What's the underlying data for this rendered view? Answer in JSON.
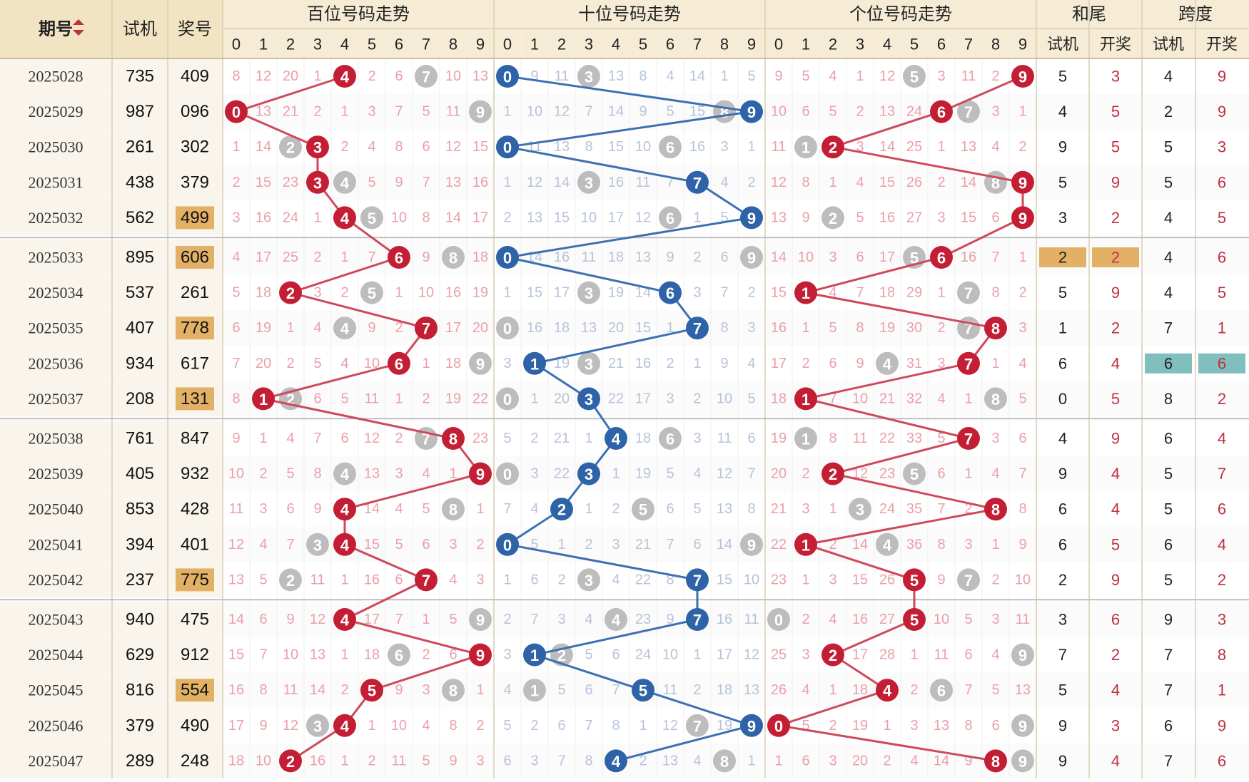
{
  "headers": {
    "period": "期号",
    "sort_icon": "sort-updown-icon",
    "trial": "试机",
    "award": "奖号",
    "hundreds": "百位号码走势",
    "tens": "十位号码走势",
    "units": "个位号码走势",
    "sum_tail": "和尾",
    "span": "跨度",
    "sub_trial": "试机",
    "sub_open": "开奖",
    "digits": [
      "0",
      "1",
      "2",
      "3",
      "4",
      "5",
      "6",
      "7",
      "8",
      "9"
    ]
  },
  "colors": {
    "header_bg": "#f6ecd6",
    "highlight_award": "#e2b166",
    "highlight_teal": "#7fbfbe",
    "red_ball": "#c41e35",
    "blue_ball": "#2f63a8",
    "gray_ball": "#bdbdbd",
    "red_line": "#cd4a5c",
    "blue_line": "#3d70b3",
    "miss_red": "#eaa0a8",
    "miss_blue": "#b7c3d9"
  },
  "chart_data": {
    "type": "table",
    "columns": [
      "期号",
      "试机",
      "奖号",
      "百位号码走势",
      "十位号码走势",
      "个位号码走势",
      "和尾 试机",
      "和尾 开奖",
      "跨度 试机",
      "跨度 开奖"
    ],
    "rows": [
      {
        "period": "2025028",
        "trial": "735",
        "award": "409",
        "award_hl": false,
        "h": [
          "8",
          "12",
          "20",
          "1",
          "4",
          "2",
          "6",
          "7",
          "10",
          "13"
        ],
        "t": [
          "0",
          "9",
          "11",
          "3",
          "13",
          "8",
          "4",
          "14",
          "1",
          "5"
        ],
        "u": [
          "9",
          "5",
          "4",
          "1",
          "12",
          "5",
          "3",
          "11",
          "2",
          "9"
        ],
        "sum_trial": "5",
        "sum_open": "3",
        "span_trial": "4",
        "span_open": "9",
        "hl_sum": false,
        "hl_span": false
      },
      {
        "period": "2025029",
        "trial": "987",
        "award": "096",
        "award_hl": false,
        "h": [
          "0",
          "13",
          "21",
          "2",
          "1",
          "3",
          "7",
          "5",
          "11",
          "9"
        ],
        "t": [
          "1",
          "10",
          "12",
          "7",
          "14",
          "9",
          "5",
          "15",
          "8",
          "9"
        ],
        "u": [
          "10",
          "6",
          "5",
          "2",
          "13",
          "24",
          "6",
          "7",
          "3",
          "1"
        ],
        "sum_trial": "4",
        "sum_open": "5",
        "span_trial": "2",
        "span_open": "9",
        "hl_sum": false,
        "hl_span": false
      },
      {
        "period": "2025030",
        "trial": "261",
        "award": "302",
        "award_hl": false,
        "h": [
          "1",
          "14",
          "2",
          "3",
          "2",
          "4",
          "8",
          "6",
          "12",
          "15"
        ],
        "t": [
          "0",
          "11",
          "13",
          "8",
          "15",
          "10",
          "6",
          "16",
          "3",
          "1"
        ],
        "u": [
          "11",
          "1",
          "2",
          "3",
          "14",
          "25",
          "1",
          "13",
          "4",
          "2"
        ],
        "sum_trial": "9",
        "sum_open": "5",
        "span_trial": "5",
        "span_open": "3",
        "hl_sum": false,
        "hl_span": false
      },
      {
        "period": "2025031",
        "trial": "438",
        "award": "379",
        "award_hl": false,
        "h": [
          "2",
          "15",
          "23",
          "3",
          "4",
          "5",
          "9",
          "7",
          "13",
          "16"
        ],
        "t": [
          "1",
          "12",
          "14",
          "3",
          "16",
          "11",
          "7",
          "7",
          "4",
          "2"
        ],
        "u": [
          "12",
          "8",
          "1",
          "4",
          "15",
          "26",
          "2",
          "14",
          "8",
          "9"
        ],
        "sum_trial": "5",
        "sum_open": "9",
        "span_trial": "5",
        "span_open": "6",
        "hl_sum": false,
        "hl_span": false
      },
      {
        "period": "2025032",
        "trial": "562",
        "award": "499",
        "award_hl": true,
        "h": [
          "3",
          "16",
          "24",
          "1",
          "4",
          "5",
          "10",
          "8",
          "14",
          "17"
        ],
        "t": [
          "2",
          "13",
          "15",
          "10",
          "17",
          "12",
          "6",
          "1",
          "5",
          "9"
        ],
        "u": [
          "13",
          "9",
          "2",
          "5",
          "16",
          "27",
          "3",
          "15",
          "6",
          "9"
        ],
        "sum_trial": "3",
        "sum_open": "2",
        "span_trial": "4",
        "span_open": "5",
        "hl_sum": false,
        "hl_span": false
      },
      {
        "period": "2025033",
        "trial": "895",
        "award": "606",
        "award_hl": true,
        "h": [
          "4",
          "17",
          "25",
          "2",
          "1",
          "7",
          "6",
          "9",
          "8",
          "18"
        ],
        "t": [
          "0",
          "14",
          "16",
          "11",
          "18",
          "13",
          "9",
          "2",
          "6",
          "9"
        ],
        "u": [
          "14",
          "10",
          "3",
          "6",
          "17",
          "5",
          "6",
          "16",
          "7",
          "1"
        ],
        "sum_trial": "2",
        "sum_open": "2",
        "span_trial": "4",
        "span_open": "6",
        "hl_sum": true,
        "hl_span": false
      },
      {
        "period": "2025034",
        "trial": "537",
        "award": "261",
        "award_hl": false,
        "h": [
          "5",
          "18",
          "2",
          "3",
          "2",
          "5",
          "1",
          "10",
          "16",
          "19"
        ],
        "t": [
          "1",
          "15",
          "17",
          "3",
          "19",
          "14",
          "6",
          "3",
          "7",
          "2"
        ],
        "u": [
          "15",
          "1",
          "4",
          "7",
          "18",
          "29",
          "1",
          "7",
          "8",
          "2"
        ],
        "sum_trial": "5",
        "sum_open": "9",
        "span_trial": "4",
        "span_open": "5",
        "hl_sum": false,
        "hl_span": false
      },
      {
        "period": "2025035",
        "trial": "407",
        "award": "778",
        "award_hl": true,
        "h": [
          "6",
          "19",
          "1",
          "4",
          "4",
          "9",
          "2",
          "7",
          "17",
          "20"
        ],
        "t": [
          "0",
          "16",
          "18",
          "13",
          "20",
          "15",
          "1",
          "7",
          "8",
          "3"
        ],
        "u": [
          "16",
          "1",
          "5",
          "8",
          "19",
          "30",
          "2",
          "7",
          "8",
          "3"
        ],
        "sum_trial": "1",
        "sum_open": "2",
        "span_trial": "7",
        "span_open": "1",
        "hl_sum": false,
        "hl_span": false
      },
      {
        "period": "2025036",
        "trial": "934",
        "award": "617",
        "award_hl": false,
        "h": [
          "7",
          "20",
          "2",
          "5",
          "4",
          "10",
          "6",
          "1",
          "18",
          "9"
        ],
        "t": [
          "3",
          "1",
          "19",
          "3",
          "21",
          "16",
          "2",
          "1",
          "9",
          "4"
        ],
        "u": [
          "17",
          "2",
          "6",
          "9",
          "4",
          "31",
          "3",
          "7",
          "1",
          "4"
        ],
        "sum_trial": "6",
        "sum_open": "4",
        "span_trial": "6",
        "span_open": "6",
        "hl_sum": false,
        "hl_span": true
      },
      {
        "period": "2025037",
        "trial": "208",
        "award": "131",
        "award_hl": true,
        "h": [
          "8",
          "1",
          "2",
          "6",
          "5",
          "11",
          "1",
          "2",
          "19",
          "22"
        ],
        "t": [
          "0",
          "1",
          "20",
          "3",
          "22",
          "17",
          "3",
          "2",
          "10",
          "5"
        ],
        "u": [
          "18",
          "1",
          "7",
          "10",
          "21",
          "32",
          "4",
          "1",
          "8",
          "5"
        ],
        "sum_trial": "0",
        "sum_open": "5",
        "span_trial": "8",
        "span_open": "2",
        "hl_sum": false,
        "hl_span": false
      },
      {
        "period": "2025038",
        "trial": "761",
        "award": "847",
        "award_hl": false,
        "h": [
          "9",
          "1",
          "4",
          "7",
          "6",
          "12",
          "2",
          "7",
          "8",
          "23"
        ],
        "t": [
          "5",
          "2",
          "21",
          "1",
          "4",
          "18",
          "6",
          "3",
          "11",
          "6"
        ],
        "u": [
          "19",
          "1",
          "8",
          "11",
          "22",
          "33",
          "5",
          "7",
          "3",
          "6"
        ],
        "sum_trial": "4",
        "sum_open": "9",
        "span_trial": "6",
        "span_open": "4",
        "hl_sum": false,
        "hl_span": false
      },
      {
        "period": "2025039",
        "trial": "405",
        "award": "932",
        "award_hl": false,
        "h": [
          "10",
          "2",
          "5",
          "8",
          "4",
          "13",
          "3",
          "4",
          "1",
          "9"
        ],
        "t": [
          "0",
          "3",
          "22",
          "3",
          "1",
          "19",
          "5",
          "4",
          "12",
          "7"
        ],
        "u": [
          "20",
          "2",
          "2",
          "12",
          "23",
          "5",
          "6",
          "1",
          "4",
          "7"
        ],
        "sum_trial": "9",
        "sum_open": "4",
        "span_trial": "5",
        "span_open": "7",
        "hl_sum": false,
        "hl_span": false
      },
      {
        "period": "2025040",
        "trial": "853",
        "award": "428",
        "award_hl": false,
        "h": [
          "11",
          "3",
          "6",
          "9",
          "4",
          "14",
          "4",
          "5",
          "8",
          "1"
        ],
        "t": [
          "7",
          "4",
          "2",
          "1",
          "2",
          "5",
          "6",
          "5",
          "13",
          "8"
        ],
        "u": [
          "21",
          "3",
          "1",
          "3",
          "24",
          "35",
          "7",
          "2",
          "8",
          "8"
        ],
        "sum_trial": "6",
        "sum_open": "4",
        "span_trial": "5",
        "span_open": "6",
        "hl_sum": false,
        "hl_span": false
      },
      {
        "period": "2025041",
        "trial": "394",
        "award": "401",
        "award_hl": false,
        "h": [
          "12",
          "4",
          "7",
          "3",
          "4",
          "15",
          "5",
          "6",
          "3",
          "2"
        ],
        "t": [
          "0",
          "5",
          "1",
          "2",
          "3",
          "21",
          "7",
          "6",
          "14",
          "9"
        ],
        "u": [
          "22",
          "1",
          "2",
          "14",
          "4",
          "36",
          "8",
          "3",
          "1",
          "9"
        ],
        "sum_trial": "6",
        "sum_open": "5",
        "span_trial": "6",
        "span_open": "4",
        "hl_sum": false,
        "hl_span": false
      },
      {
        "period": "2025042",
        "trial": "237",
        "award": "775",
        "award_hl": true,
        "h": [
          "13",
          "5",
          "2",
          "11",
          "1",
          "16",
          "6",
          "7",
          "4",
          "3"
        ],
        "t": [
          "1",
          "6",
          "2",
          "3",
          "4",
          "22",
          "8",
          "7",
          "15",
          "10"
        ],
        "u": [
          "23",
          "1",
          "3",
          "15",
          "26",
          "5",
          "9",
          "7",
          "2",
          "10"
        ],
        "sum_trial": "2",
        "sum_open": "9",
        "span_trial": "5",
        "span_open": "2",
        "hl_sum": false,
        "hl_span": false
      },
      {
        "period": "2025043",
        "trial": "940",
        "award": "475",
        "award_hl": false,
        "h": [
          "14",
          "6",
          "9",
          "12",
          "4",
          "17",
          "7",
          "1",
          "5",
          "9"
        ],
        "t": [
          "2",
          "7",
          "3",
          "4",
          "4",
          "23",
          "9",
          "7",
          "16",
          "11"
        ],
        "u": [
          "0",
          "2",
          "4",
          "16",
          "27",
          "5",
          "10",
          "5",
          "3",
          "11"
        ],
        "sum_trial": "3",
        "sum_open": "6",
        "span_trial": "9",
        "span_open": "3",
        "hl_sum": false,
        "hl_span": false
      },
      {
        "period": "2025044",
        "trial": "629",
        "award": "912",
        "award_hl": false,
        "h": [
          "15",
          "7",
          "10",
          "13",
          "1",
          "18",
          "6",
          "2",
          "6",
          "9"
        ],
        "t": [
          "3",
          "1",
          "2",
          "5",
          "6",
          "24",
          "10",
          "1",
          "17",
          "12"
        ],
        "u": [
          "25",
          "3",
          "2",
          "17",
          "28",
          "1",
          "11",
          "6",
          "4",
          "9"
        ],
        "sum_trial": "7",
        "sum_open": "2",
        "span_trial": "7",
        "span_open": "8",
        "hl_sum": false,
        "hl_span": false
      },
      {
        "period": "2025045",
        "trial": "816",
        "award": "554",
        "award_hl": true,
        "h": [
          "16",
          "8",
          "11",
          "14",
          "2",
          "5",
          "9",
          "3",
          "8",
          "1"
        ],
        "t": [
          "4",
          "1",
          "5",
          "6",
          "7",
          "5",
          "11",
          "2",
          "18",
          "13"
        ],
        "u": [
          "26",
          "4",
          "1",
          "18",
          "4",
          "2",
          "6",
          "7",
          "5",
          "13"
        ],
        "sum_trial": "5",
        "sum_open": "4",
        "span_trial": "7",
        "span_open": "1",
        "hl_sum": false,
        "hl_span": false
      },
      {
        "period": "2025046",
        "trial": "379",
        "award": "490",
        "award_hl": false,
        "h": [
          "17",
          "9",
          "12",
          "3",
          "4",
          "1",
          "10",
          "4",
          "8",
          "2"
        ],
        "t": [
          "5",
          "2",
          "6",
          "7",
          "8",
          "1",
          "12",
          "7",
          "19",
          "9"
        ],
        "u": [
          "0",
          "5",
          "2",
          "19",
          "1",
          "3",
          "13",
          "8",
          "6",
          "9"
        ],
        "sum_trial": "9",
        "sum_open": "3",
        "span_trial": "6",
        "span_open": "9",
        "hl_sum": false,
        "hl_span": false
      },
      {
        "period": "2025047",
        "trial": "289",
        "award": "248",
        "award_hl": false,
        "h": [
          "18",
          "10",
          "2",
          "16",
          "1",
          "2",
          "11",
          "5",
          "9",
          "3"
        ],
        "t": [
          "6",
          "3",
          "7",
          "8",
          "4",
          "2",
          "13",
          "4",
          "8",
          "1"
        ],
        "u": [
          "1",
          "6",
          "3",
          "20",
          "2",
          "4",
          "14",
          "9",
          "8",
          "9"
        ],
        "sum_trial": "9",
        "sum_open": "4",
        "span_trial": "7",
        "span_open": "6",
        "hl_sum": false,
        "hl_span": false
      }
    ],
    "hundreds_drawn": [
      4,
      0,
      3,
      3,
      4,
      6,
      2,
      7,
      6,
      1,
      8,
      9,
      4,
      4,
      7,
      4,
      9,
      5,
      4,
      2
    ],
    "tens_drawn": [
      0,
      9,
      0,
      7,
      9,
      0,
      6,
      7,
      1,
      3,
      4,
      3,
      2,
      0,
      7,
      7,
      1,
      5,
      9,
      4
    ],
    "units_drawn": [
      9,
      6,
      2,
      9,
      9,
      6,
      1,
      8,
      7,
      1,
      7,
      2,
      8,
      1,
      5,
      5,
      2,
      4,
      0,
      8
    ],
    "hundreds_trial": [
      7,
      9,
      2,
      4,
      5,
      8,
      5,
      4,
      9,
      2,
      7,
      4,
      8,
      3,
      2,
      9,
      6,
      8,
      3,
      2
    ],
    "tens_trial": [
      3,
      8,
      6,
      3,
      6,
      9,
      3,
      0,
      3,
      0,
      6,
      0,
      5,
      9,
      3,
      4,
      2,
      1,
      7,
      8
    ],
    "units_trial": [
      5,
      7,
      1,
      8,
      2,
      5,
      7,
      7,
      4,
      8,
      1,
      5,
      3,
      4,
      7,
      0,
      9,
      6,
      9,
      9
    ]
  }
}
